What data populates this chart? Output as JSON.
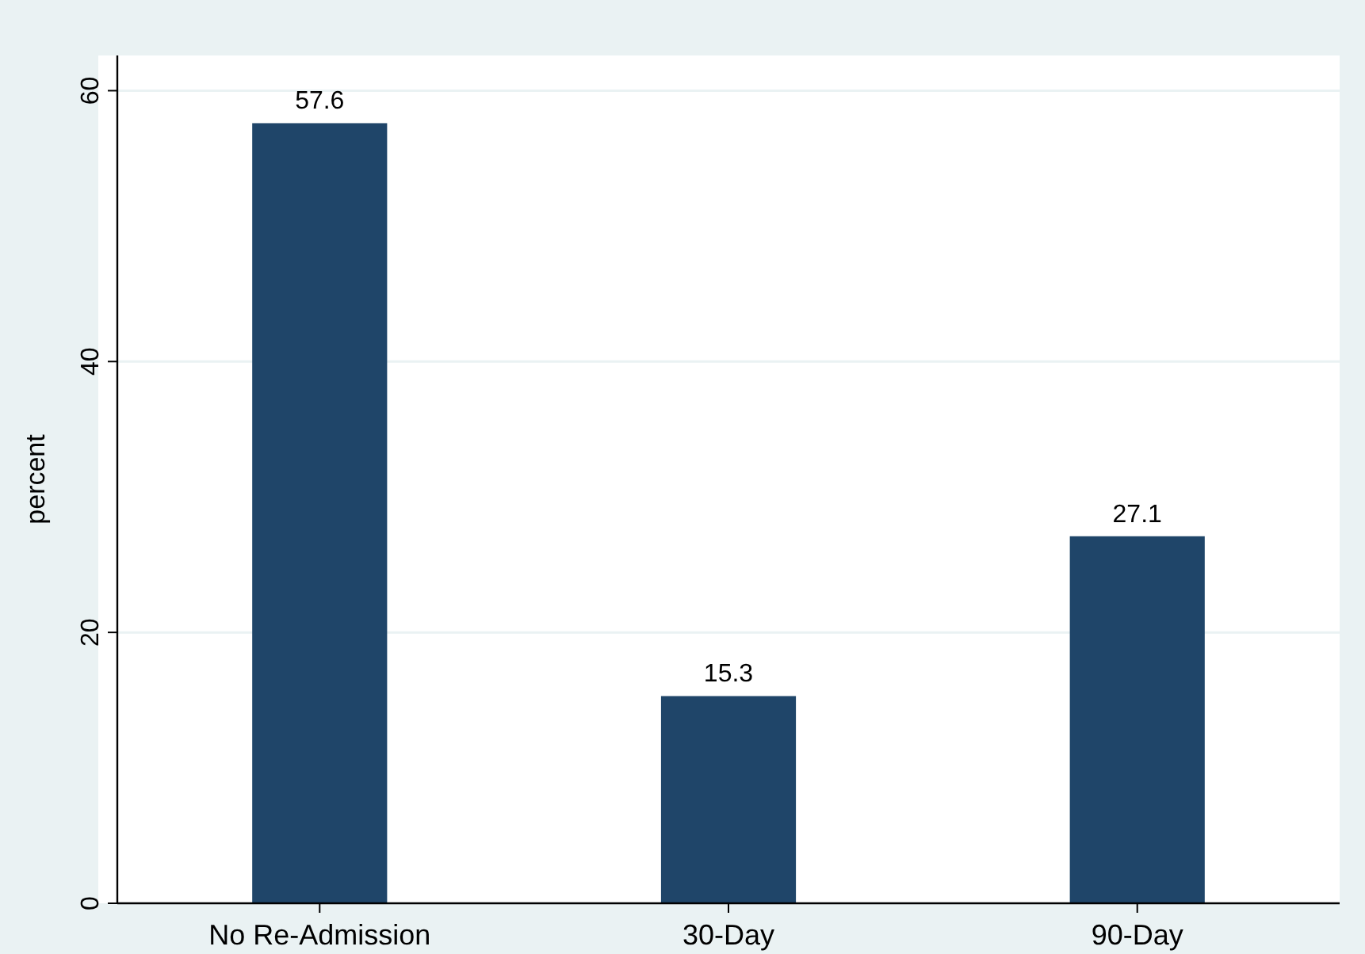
{
  "chart_data": {
    "type": "bar",
    "ylabel": "percent",
    "categories": [
      "No Re-Admission",
      "30-Day",
      "90-Day"
    ],
    "values": [
      57.6,
      15.3,
      27.1
    ],
    "color": "#1f4569",
    "ylim": [
      0,
      62.6
    ],
    "yticks": [
      0,
      20,
      40,
      60
    ],
    "grid": "y",
    "data_labels": true
  }
}
